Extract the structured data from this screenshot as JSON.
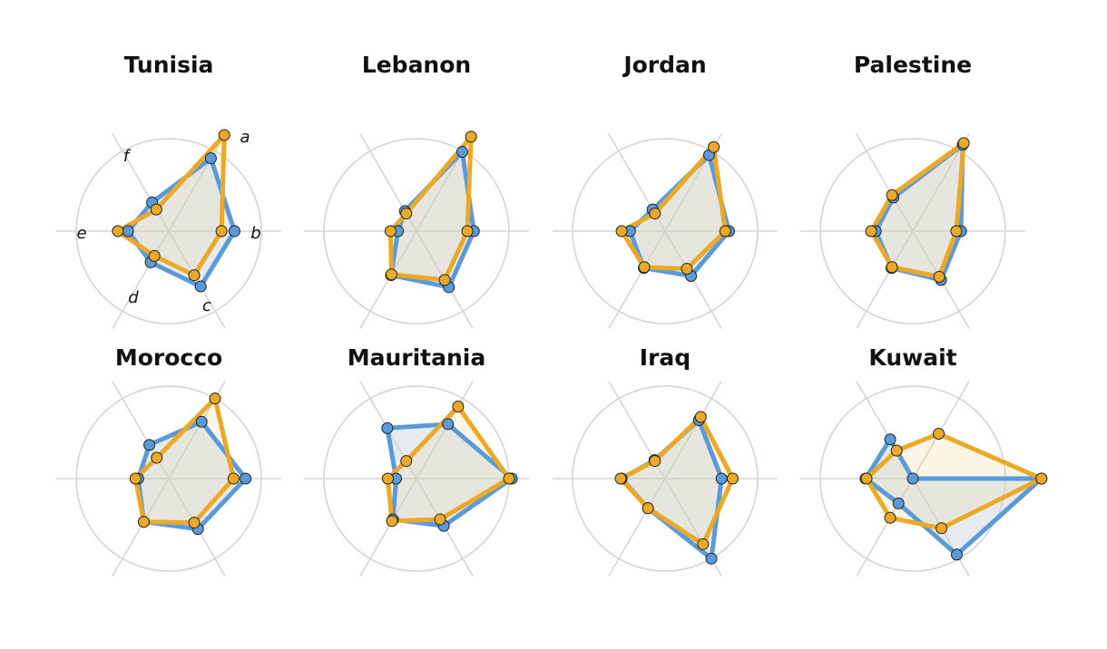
{
  "colors": {
    "series_a": "#5b9ad9",
    "series_b": "#eaaa28",
    "grid": "#d5d5d5",
    "fill_overlap": "#e9e6dc"
  },
  "chart_data": [
    {
      "type": "radar",
      "title": "Tunisia",
      "axes": [
        "a",
        "b",
        "c",
        "d",
        "e",
        "f"
      ],
      "axis_labels_shown": true,
      "rmax": 1,
      "series": [
        {
          "values": [
            0.91,
            0.71,
            0.69,
            0.39,
            0.44,
            0.36
          ]
        },
        {
          "values": [
            1.2,
            0.57,
            0.55,
            0.31,
            0.55,
            0.27
          ]
        }
      ]
    },
    {
      "type": "radar",
      "title": "Lebanon",
      "axes": [
        "a",
        "b",
        "c",
        "d",
        "e",
        "f"
      ],
      "axis_labels_shown": false,
      "rmax": 1,
      "series": [
        {
          "values": [
            0.99,
            0.62,
            0.7,
            0.55,
            0.2,
            0.25
          ]
        },
        {
          "values": [
            1.18,
            0.55,
            0.61,
            0.54,
            0.28,
            0.22
          ]
        }
      ]
    },
    {
      "type": "radar",
      "title": "Jordan",
      "axes": [
        "a",
        "b",
        "c",
        "d",
        "e",
        "f"
      ],
      "axis_labels_shown": false,
      "rmax": 1,
      "series": [
        {
          "values": [
            0.95,
            0.69,
            0.56,
            0.46,
            0.38,
            0.27
          ]
        },
        {
          "values": [
            1.05,
            0.65,
            0.47,
            0.45,
            0.47,
            0.22
          ]
        }
      ]
    },
    {
      "type": "radar",
      "title": "Palestine",
      "axes": [
        "a",
        "b",
        "c",
        "d",
        "e",
        "f"
      ],
      "axis_labels_shown": false,
      "rmax": 1,
      "series": [
        {
          "values": [
            1.08,
            0.52,
            0.61,
            0.46,
            0.4,
            0.42
          ]
        },
        {
          "values": [
            1.1,
            0.47,
            0.57,
            0.45,
            0.45,
            0.45
          ]
        }
      ]
    },
    {
      "type": "radar",
      "title": "Morocco",
      "axes": [
        "a",
        "b",
        "c",
        "d",
        "e",
        "f"
      ],
      "axis_labels_shown": false,
      "rmax": 1,
      "series": [
        {
          "values": [
            0.71,
            0.83,
            0.63,
            0.54,
            0.33,
            0.42
          ]
        },
        {
          "values": [
            1.0,
            0.7,
            0.55,
            0.54,
            0.36,
            0.26
          ]
        }
      ]
    },
    {
      "type": "radar",
      "title": "Mauritania",
      "axes": [
        "a",
        "b",
        "c",
        "d",
        "e",
        "f"
      ],
      "axis_labels_shown": false,
      "rmax": 1,
      "series": [
        {
          "values": [
            0.68,
            1.03,
            0.59,
            0.51,
            0.22,
            0.63
          ]
        },
        {
          "values": [
            0.9,
            1.0,
            0.51,
            0.53,
            0.31,
            0.22
          ]
        }
      ]
    },
    {
      "type": "radar",
      "title": "Iraq",
      "axes": [
        "a",
        "b",
        "c",
        "d",
        "e",
        "f"
      ],
      "axis_labels_shown": false,
      "rmax": 1,
      "series": [
        {
          "values": [
            0.73,
            0.61,
            1.0,
            0.37,
            0.47,
            0.23
          ]
        },
        {
          "values": [
            0.77,
            0.73,
            0.82,
            0.37,
            0.48,
            0.22
          ]
        }
      ]
    },
    {
      "type": "radar",
      "title": "Kuwait",
      "axes": [
        "a",
        "b",
        "c",
        "d",
        "e",
        "f"
      ],
      "axis_labels_shown": false,
      "rmax": 1,
      "series": [
        {
          "values": [
            0.0,
            1.39,
            0.95,
            0.31,
            0.51,
            0.49
          ]
        },
        {
          "values": [
            0.56,
            1.39,
            0.62,
            0.49,
            0.5,
            0.35
          ]
        }
      ]
    }
  ]
}
